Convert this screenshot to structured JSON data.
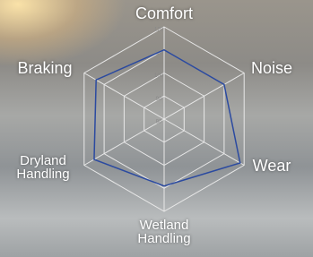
{
  "chart_data": {
    "type": "radar",
    "categories": [
      "Comfort",
      "Noise",
      "Wear",
      "Wetland Handling",
      "Dryland Handling",
      "Braking"
    ],
    "series": [
      {
        "color": "#2b4aa0",
        "values": [
          110,
          110,
          118,
          109,
          115,
          114
        ]
      }
    ],
    "ylim": [
      80,
      120
    ],
    "yticks": [
      80,
      90,
      100,
      110,
      120
    ],
    "grid": true
  }
}
